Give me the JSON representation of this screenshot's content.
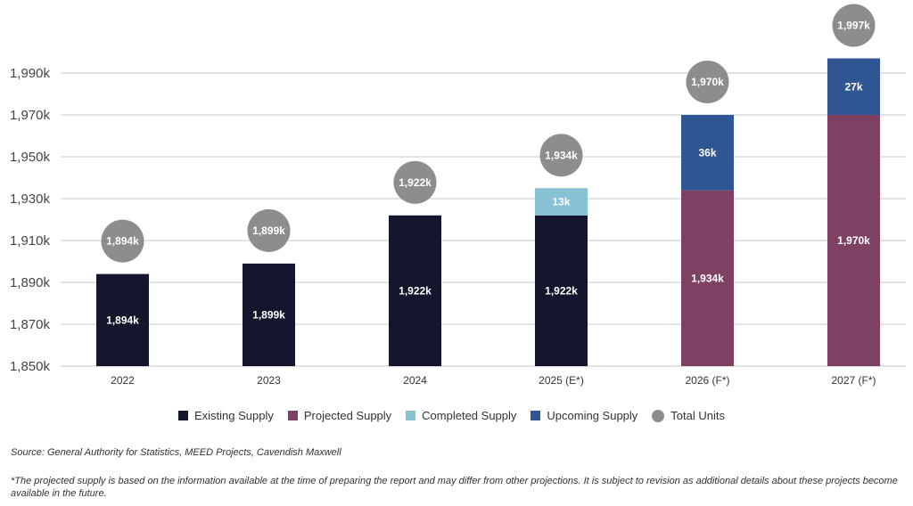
{
  "chart_data": {
    "type": "bar",
    "stacked": true,
    "title": "",
    "xlabel": "",
    "ylabel": "",
    "ylim": [
      1850,
      2000
    ],
    "yticks": [
      1850,
      1870,
      1890,
      1910,
      1930,
      1950,
      1970,
      1990
    ],
    "ytick_labels": [
      "1,850k",
      "1,870k",
      "1,890k",
      "1,910k",
      "1,930k",
      "1,950k",
      "1,970k",
      "1,990k"
    ],
    "grid": true,
    "categories": [
      "2022",
      "2023",
      "2024",
      "2025 (E*)",
      "2026 (F*)",
      "2027 (F*)"
    ],
    "series": [
      {
        "name": "Existing Supply",
        "color": "#14162e",
        "values": [
          1894,
          1899,
          1922,
          1922,
          null,
          null
        ],
        "labels": [
          "1,894k",
          "1,899k",
          "1,922k",
          "1,922k",
          null,
          null
        ]
      },
      {
        "name": "Projected Supply",
        "color": "#7e4163",
        "values": [
          null,
          null,
          null,
          null,
          1934,
          1970
        ],
        "labels": [
          null,
          null,
          null,
          null,
          "1,934k",
          "1,970k"
        ]
      },
      {
        "name": "Completed Supply",
        "color": "#86c1d4",
        "values": [
          null,
          null,
          null,
          13,
          null,
          null
        ],
        "labels": [
          null,
          null,
          null,
          "13k",
          null,
          null
        ]
      },
      {
        "name": "Upcoming Supply",
        "color": "#2f5593",
        "values": [
          null,
          null,
          null,
          null,
          36,
          27
        ],
        "labels": [
          null,
          null,
          null,
          null,
          "36k",
          "27k"
        ]
      }
    ],
    "total_units": {
      "name": "Total Units",
      "color": "#8e8c8d",
      "values": [
        1894,
        1899,
        1922,
        1934,
        1970,
        1997
      ],
      "labels": [
        "1,894k",
        "1,899k",
        "1,922k",
        "1,934k",
        "1,970k",
        "1,997k"
      ]
    },
    "legend_position": "bottom-center"
  },
  "legend": [
    {
      "label": "Existing Supply",
      "color": "#14162e",
      "shape": "square"
    },
    {
      "label": "Projected Supply",
      "color": "#7e4163",
      "shape": "square"
    },
    {
      "label": "Completed Supply",
      "color": "#86c1d4",
      "shape": "square"
    },
    {
      "label": "Upcoming Supply",
      "color": "#2f5593",
      "shape": "square"
    },
    {
      "label": "Total Units",
      "color": "#8e8c8d",
      "shape": "circle"
    }
  ],
  "source": "Source: General Authority for Statistics, MEED Projects, Cavendish Maxwell",
  "note": "*The projected supply is based on the information available at the time of preparing the report and may differ from other projections. It is subject to revision as additional details about these projects become available in the future."
}
